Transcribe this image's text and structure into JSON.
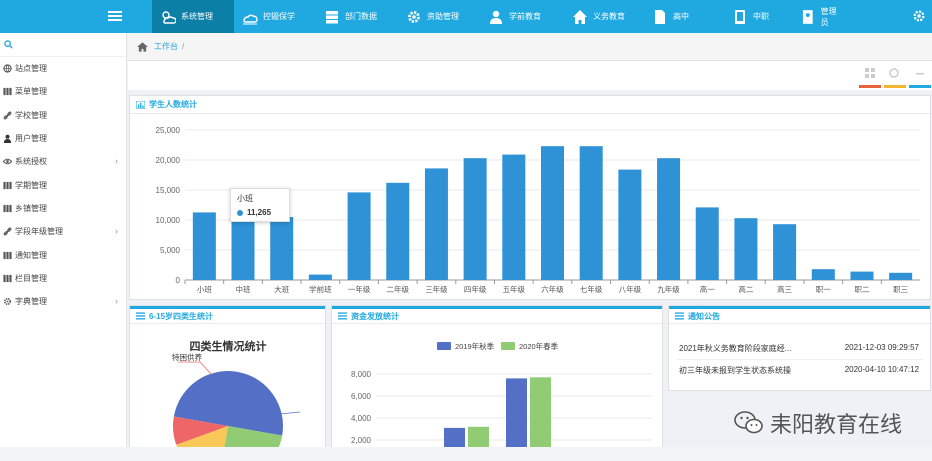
{
  "topbar": {
    "nav": [
      {
        "label": "系统管理",
        "icon": "cloud-sun-icon"
      },
      {
        "label": "控辍保学",
        "icon": "cloud-icon"
      },
      {
        "label": "部门数据",
        "icon": "server-icon"
      },
      {
        "label": "资助管理",
        "icon": "gear-icon"
      },
      {
        "label": "学前教育",
        "icon": "user-icon"
      },
      {
        "label": "义务教育",
        "icon": "home-icon"
      },
      {
        "label": "高中",
        "icon": "file-icon"
      },
      {
        "label": "中职",
        "icon": "book-icon"
      },
      {
        "label": "管理员",
        "icon": "avatar-icon"
      }
    ]
  },
  "sidebar": {
    "items": [
      {
        "label": "站点管理",
        "icon": "globe-icon",
        "arrow": false
      },
      {
        "label": "菜单管理",
        "icon": "grid-icon",
        "arrow": false
      },
      {
        "label": "学校管理",
        "icon": "link-icon",
        "arrow": false
      },
      {
        "label": "用户管理",
        "icon": "user-icon",
        "arrow": false
      },
      {
        "label": "系统授权",
        "icon": "eye-icon",
        "arrow": true
      },
      {
        "label": "学期管理",
        "icon": "grid-icon",
        "arrow": false
      },
      {
        "label": "乡镇管理",
        "icon": "grid-icon",
        "arrow": false
      },
      {
        "label": "学段年级管理",
        "icon": "link-icon",
        "arrow": true
      },
      {
        "label": "通知管理",
        "icon": "grid-icon",
        "arrow": false
      },
      {
        "label": "栏目管理",
        "icon": "grid-icon",
        "arrow": false
      },
      {
        "label": "字典管理",
        "icon": "gear-icon",
        "arrow": true
      }
    ]
  },
  "breadcrumb": {
    "home_label": "工作台",
    "sep": "/"
  },
  "panels": {
    "students": "学生人数统计",
    "four_types": "6-15岁四类生统计",
    "funding": "资金发放统计",
    "notice": "通知公告"
  },
  "tooltip": {
    "title": "小班",
    "value": "11,265"
  },
  "chart_data": [
    {
      "type": "bar",
      "categories": [
        "小班",
        "中班",
        "大班",
        "学前班",
        "一年级",
        "二年级",
        "三年级",
        "四年级",
        "五年级",
        "六年级",
        "七年级",
        "八年级",
        "九年级",
        "高一",
        "高二",
        "高三",
        "职一",
        "职二",
        "职三"
      ],
      "values": [
        11265,
        10900,
        10500,
        900,
        14600,
        16200,
        18600,
        20300,
        20900,
        22300,
        22300,
        18400,
        20300,
        12100,
        10300,
        9300,
        1800,
        1400,
        1200
      ],
      "title": "",
      "xlabel": "",
      "ylabel": "",
      "ylim": [
        0,
        25000
      ],
      "yticks": [
        "0",
        "5,000",
        "10,000",
        "15,000",
        "20,000",
        "25,000"
      ],
      "color": "#2f91d6",
      "grid": true
    },
    {
      "type": "pie",
      "title": "四类生情况统计",
      "labels": [
        "特困供养"
      ],
      "colors": [
        "#5470c6",
        "#fac858",
        "#91cc75",
        "#ee6666"
      ]
    },
    {
      "type": "bar",
      "categories": [
        "",
        ""
      ],
      "series": [
        {
          "name": "2019年秋季",
          "values": [
            3100,
            7600
          ],
          "color": "#5470c6"
        },
        {
          "name": "2020年春季",
          "values": [
            3200,
            7700
          ],
          "color": "#91cc75"
        }
      ],
      "yticks": [
        "2,000",
        "4,000",
        "6,000",
        "8,000"
      ],
      "legend": "top-center"
    }
  ],
  "notices": [
    {
      "title": "2021年秋义务教育阶段家庭经...",
      "time": "2021-12-03 09:29:57"
    },
    {
      "title": "初三年级未报到学生状态系统操",
      "time": "2020-04-10 10:47:12"
    }
  ],
  "watermark": {
    "text": "耒阳教育在线"
  },
  "colors": {
    "primary": "#1fa9e0",
    "active_nav": "#0c7fa6",
    "bar": "#2f91d6"
  }
}
